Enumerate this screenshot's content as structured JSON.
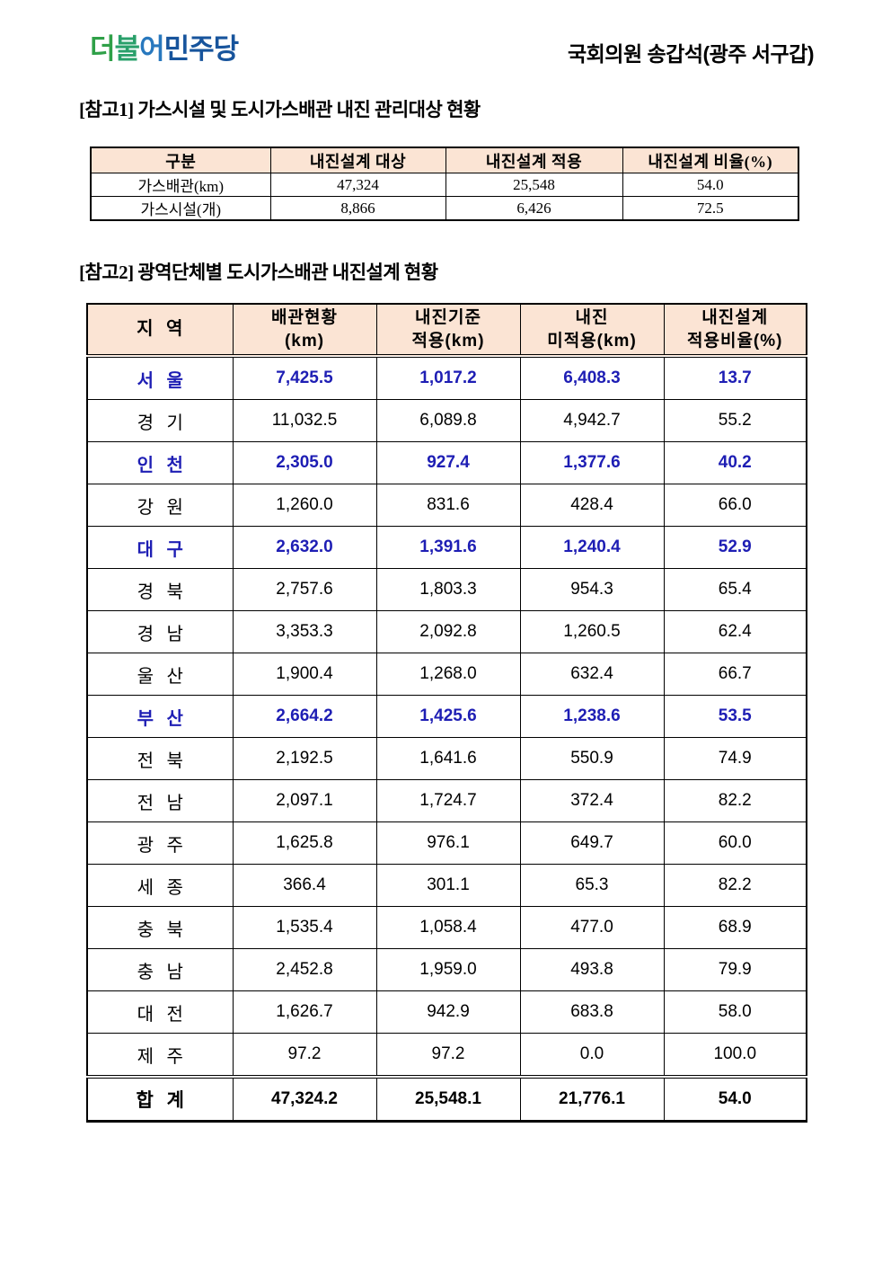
{
  "header": {
    "logo_text": "더불어민주당",
    "logo_chars": [
      {
        "ch": "더",
        "color": "#2fa048"
      },
      {
        "ch": "불",
        "color": "#2aa06b"
      },
      {
        "ch": "어",
        "color": "#2878be"
      },
      {
        "ch": "민",
        "color": "#17549c"
      },
      {
        "ch": "주",
        "color": "#17549c"
      },
      {
        "ch": "당",
        "color": "#17549c"
      }
    ],
    "member": "국회의원 송갑석(광주 서구갑)"
  },
  "section1": {
    "title": "[참고1] 가스시설 및 도시가스배관 내진 관리대상 현황",
    "table": {
      "columns": [
        "구분",
        "내진설계 대상",
        "내진설계 적용",
        "내진설계 비율(%)"
      ],
      "rows": [
        {
          "label": "가스배관(km)",
          "target": "47,324",
          "applied": "25,548",
          "ratio": "54.0"
        },
        {
          "label": "가스시설(개)",
          "target": "8,866",
          "applied": "6,426",
          "ratio": "72.5"
        }
      ]
    }
  },
  "section2": {
    "title": "[참고2] 광역단체별 도시가스배관 내진설계 현황",
    "table": {
      "columns": [
        {
          "line1": "지 역",
          "line2": ""
        },
        {
          "line1": "배관현황",
          "line2": "(km)"
        },
        {
          "line1": "내진기준",
          "line2": "적용(km)"
        },
        {
          "line1": "내진",
          "line2": "미적용(km)"
        },
        {
          "line1": "내진설계",
          "line2": "적용비율(%)"
        }
      ],
      "rows": [
        {
          "region": "서 울",
          "pipeline": "7,425.5",
          "applied": "1,017.2",
          "not_applied": "6,408.3",
          "ratio": "13.7",
          "highlight": true
        },
        {
          "region": "경 기",
          "pipeline": "11,032.5",
          "applied": "6,089.8",
          "not_applied": "4,942.7",
          "ratio": "55.2",
          "highlight": false
        },
        {
          "region": "인 천",
          "pipeline": "2,305.0",
          "applied": "927.4",
          "not_applied": "1,377.6",
          "ratio": "40.2",
          "highlight": true
        },
        {
          "region": "강 원",
          "pipeline": "1,260.0",
          "applied": "831.6",
          "not_applied": "428.4",
          "ratio": "66.0",
          "highlight": false
        },
        {
          "region": "대 구",
          "pipeline": "2,632.0",
          "applied": "1,391.6",
          "not_applied": "1,240.4",
          "ratio": "52.9",
          "highlight": true
        },
        {
          "region": "경 북",
          "pipeline": "2,757.6",
          "applied": "1,803.3",
          "not_applied": "954.3",
          "ratio": "65.4",
          "highlight": false
        },
        {
          "region": "경 남",
          "pipeline": "3,353.3",
          "applied": "2,092.8",
          "not_applied": "1,260.5",
          "ratio": "62.4",
          "highlight": false
        },
        {
          "region": "울 산",
          "pipeline": "1,900.4",
          "applied": "1,268.0",
          "not_applied": "632.4",
          "ratio": "66.7",
          "highlight": false
        },
        {
          "region": "부 산",
          "pipeline": "2,664.2",
          "applied": "1,425.6",
          "not_applied": "1,238.6",
          "ratio": "53.5",
          "highlight": true
        },
        {
          "region": "전 북",
          "pipeline": "2,192.5",
          "applied": "1,641.6",
          "not_applied": "550.9",
          "ratio": "74.9",
          "highlight": false
        },
        {
          "region": "전 남",
          "pipeline": "2,097.1",
          "applied": "1,724.7",
          "not_applied": "372.4",
          "ratio": "82.2",
          "highlight": false
        },
        {
          "region": "광 주",
          "pipeline": "1,625.8",
          "applied": "976.1",
          "not_applied": "649.7",
          "ratio": "60.0",
          "highlight": false
        },
        {
          "region": "세 종",
          "pipeline": "366.4",
          "applied": "301.1",
          "not_applied": "65.3",
          "ratio": "82.2",
          "highlight": false
        },
        {
          "region": "충 북",
          "pipeline": "1,535.4",
          "applied": "1,058.4",
          "not_applied": "477.0",
          "ratio": "68.9",
          "highlight": false
        },
        {
          "region": "충 남",
          "pipeline": "2,452.8",
          "applied": "1,959.0",
          "not_applied": "493.8",
          "ratio": "79.9",
          "highlight": false
        },
        {
          "region": "대 전",
          "pipeline": "1,626.7",
          "applied": "942.9",
          "not_applied": "683.8",
          "ratio": "58.0",
          "highlight": false
        },
        {
          "region": "제 주",
          "pipeline": "97.2",
          "applied": "97.2",
          "not_applied": "0.0",
          "ratio": "100.0",
          "highlight": false
        }
      ],
      "total_row": {
        "region": "합 계",
        "pipeline": "47,324.2",
        "applied": "25,548.1",
        "not_applied": "21,776.1",
        "ratio": "54.0"
      }
    }
  },
  "colors": {
    "header_bg": "#fbe4d4",
    "highlight_text": "#1e1eb4",
    "logo_green": "#2fa048",
    "logo_blue": "#17549c"
  }
}
